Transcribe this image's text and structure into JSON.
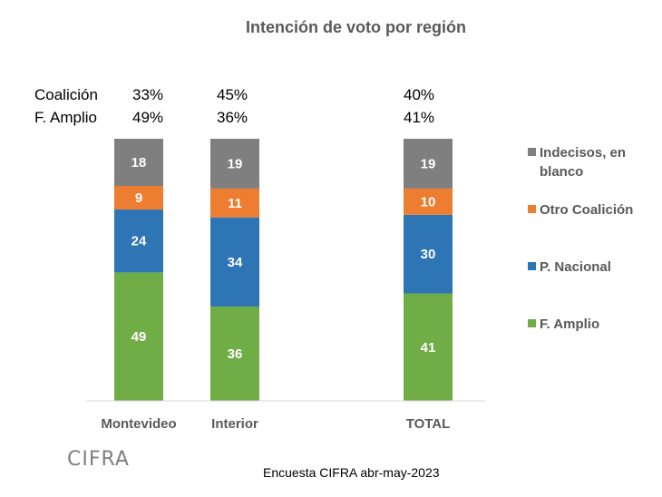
{
  "chart_data": {
    "type": "bar",
    "stacked": true,
    "title": "Intención de voto por región",
    "categories": [
      "Montevideo",
      "Interior",
      "TOTAL"
    ],
    "series": [
      {
        "name": "F. Amplio",
        "color": "#70ad47",
        "values": [
          49,
          36,
          41
        ]
      },
      {
        "name": "P. Nacional",
        "color": "#2e75b6",
        "values": [
          24,
          34,
          30
        ]
      },
      {
        "name": "Otro Coalición",
        "color": "#ed7d31",
        "values": [
          9,
          11,
          10
        ]
      },
      {
        "name": "Indecisos, en blanco",
        "color": "#7f7f7f",
        "values": [
          18,
          19,
          19
        ]
      }
    ],
    "ylim": [
      0,
      100
    ],
    "xlabel": "",
    "ylabel": "",
    "legend": "right",
    "grid": false,
    "summary_rows": [
      {
        "label": "Coalición",
        "values": [
          "33%",
          "45%",
          "40%"
        ]
      },
      {
        "label": "F. Amplio",
        "values": [
          "49%",
          "36%",
          "41%"
        ]
      }
    ]
  },
  "logo_text": "CIFRA",
  "source": "Encuesta CIFRA abr-may-2023"
}
